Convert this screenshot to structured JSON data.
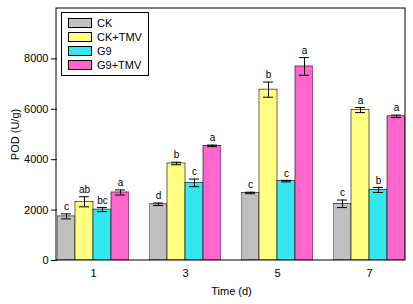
{
  "chart_data": {
    "type": "bar",
    "x_label": "Time (d)",
    "y_label": "POD (U/g)",
    "categories": [
      "1",
      "3",
      "5",
      "7"
    ],
    "ylim": [
      0,
      10000
    ],
    "yticks": [
      0,
      2000,
      4000,
      6000,
      8000
    ],
    "legend": "upper left",
    "series": [
      {
        "name": "CK",
        "color": "#c0c0c0",
        "values": [
          1750,
          2230,
          2680,
          2250
        ],
        "errors": [
          100,
          50,
          30,
          150
        ],
        "significance": [
          "c",
          "d",
          "c",
          "c"
        ]
      },
      {
        "name": "CK+TMV",
        "color": "#ffff80",
        "values": [
          2330,
          3850,
          6780,
          5970
        ],
        "errors": [
          200,
          50,
          300,
          100
        ],
        "significance": [
          "ab",
          "b",
          "b",
          "a"
        ]
      },
      {
        "name": "G9",
        "color": "#33e6f0",
        "values": [
          2020,
          3080,
          3150,
          2800
        ],
        "errors": [
          80,
          150,
          30,
          100
        ],
        "significance": [
          "bc",
          "c",
          "c",
          "b"
        ]
      },
      {
        "name": "G9+TMV",
        "color": "#ff66cc",
        "values": [
          2700,
          4550,
          7700,
          5720
        ],
        "errors": [
          100,
          30,
          350,
          50
        ],
        "significance": [
          "a",
          "a",
          "a",
          "a"
        ]
      }
    ]
  }
}
